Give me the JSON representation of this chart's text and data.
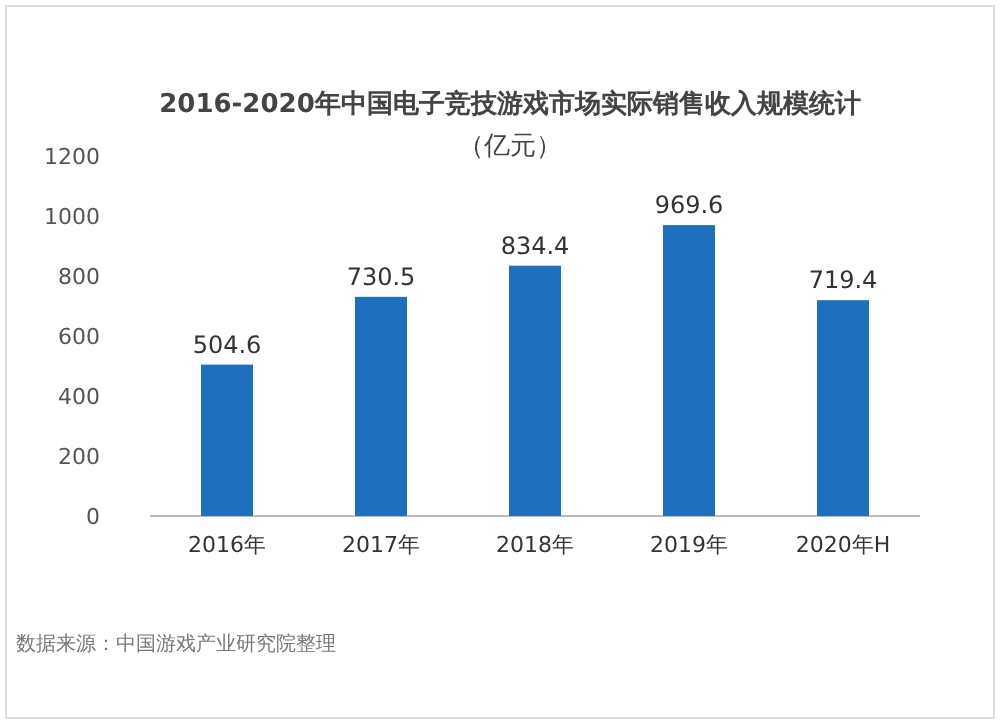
{
  "chart_data": {
    "type": "bar",
    "title": "2016-2020年中国电子竞技游戏市场实际销售收入规模统计",
    "subtitle": "（亿元）",
    "categories": [
      "2016年",
      "2017年",
      "2018年",
      "2019年",
      "2020年H"
    ],
    "values": [
      504.6,
      730.5,
      834.4,
      969.6,
      719.4
    ],
    "color": "#1f6fbf",
    "ylim": [
      0,
      1200
    ],
    "yticks": [
      0,
      200,
      400,
      600,
      800,
      1000,
      1200
    ],
    "data_labels": true,
    "annotations": [
      "数据来源：中国游戏产业研究院整理"
    ]
  }
}
